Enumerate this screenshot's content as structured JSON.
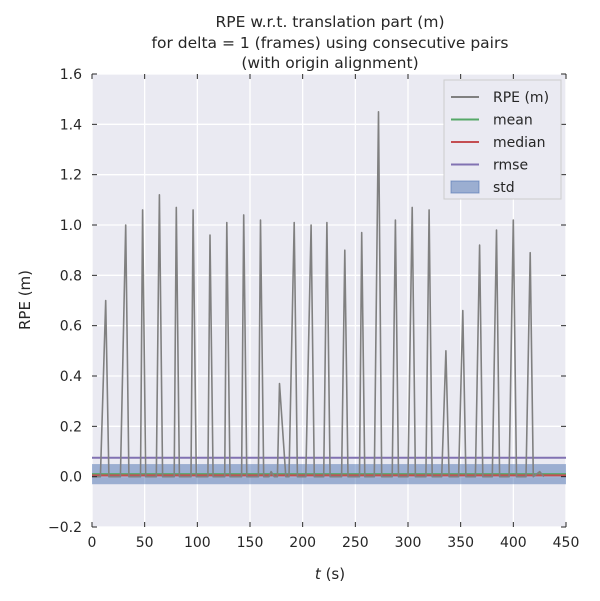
{
  "chart_data": {
    "type": "line",
    "title_lines": [
      "RPE w.r.t. translation part (m)",
      "for delta = 1 (frames) using consecutive pairs",
      "(with origin alignment)"
    ],
    "xlabel_italic": "t",
    "xlabel_rest": " (s)",
    "ylabel": "RPE (m)",
    "xlim": [
      0,
      450
    ],
    "ylim": [
      -0.2,
      1.6
    ],
    "xticks": [
      0,
      50,
      100,
      150,
      200,
      250,
      300,
      350,
      400,
      450
    ],
    "yticks": [
      -0.2,
      0.0,
      0.2,
      0.4,
      0.6,
      0.8,
      1.0,
      1.2,
      1.4,
      1.6
    ],
    "ytick_labels": [
      "−0.2",
      "0.0",
      "0.2",
      "0.4",
      "0.6",
      "0.8",
      "1.0",
      "1.2",
      "1.4",
      "1.6"
    ],
    "grid": true,
    "legend_position": "top-right",
    "series": [
      {
        "name": "RPE (m)",
        "kind": "line",
        "color": "#808080",
        "x": [
          0,
          8,
          13,
          16,
          24,
          27,
          32,
          35,
          43,
          46,
          48,
          51,
          58,
          61,
          64,
          67,
          75,
          78,
          80,
          83,
          91,
          94,
          96,
          99,
          107,
          110,
          112,
          115,
          123,
          126,
          128,
          131,
          139,
          142,
          144,
          147,
          155,
          158,
          160,
          163,
          168,
          170,
          173,
          176,
          178,
          184,
          187,
          192,
          195,
          200,
          203,
          208,
          211,
          217,
          220,
          223,
          226,
          234,
          237,
          240,
          243,
          251,
          254,
          256,
          259,
          265,
          268,
          272,
          275,
          282,
          285,
          288,
          291,
          297,
          300,
          304,
          307,
          314,
          317,
          320,
          323,
          329,
          332,
          336,
          339,
          345,
          348,
          352,
          355,
          361,
          364,
          368,
          371,
          377,
          380,
          384,
          387,
          393,
          396,
          400,
          403,
          409,
          412,
          416,
          419,
          425,
          429
        ],
        "y": [
          0.0,
          0.0,
          0.7,
          0.0,
          0.0,
          0.0,
          1.0,
          0.0,
          0.0,
          0.0,
          1.06,
          0.0,
          0.0,
          0.0,
          1.12,
          0.0,
          0.0,
          0.0,
          1.07,
          0.0,
          0.0,
          0.0,
          1.06,
          0.0,
          0.0,
          0.0,
          0.96,
          0.0,
          0.0,
          0.0,
          1.01,
          0.0,
          0.0,
          0.0,
          1.04,
          0.0,
          0.0,
          0.0,
          1.02,
          0.0,
          0.0,
          0.02,
          0.0,
          0.0,
          0.37,
          0.0,
          0.0,
          1.01,
          0.0,
          0.0,
          0.0,
          1.0,
          0.0,
          0.0,
          0.0,
          1.01,
          0.0,
          0.0,
          0.0,
          0.9,
          0.0,
          0.0,
          0.0,
          0.97,
          0.0,
          0.0,
          0.0,
          1.45,
          0.0,
          0.0,
          0.0,
          1.02,
          0.0,
          0.0,
          0.0,
          1.07,
          0.0,
          0.0,
          0.0,
          1.06,
          0.0,
          0.0,
          0.0,
          0.5,
          0.0,
          0.0,
          0.0,
          0.66,
          0.0,
          0.0,
          0.0,
          0.92,
          0.0,
          0.0,
          0.0,
          0.98,
          0.0,
          0.0,
          0.0,
          1.02,
          0.0,
          0.0,
          0.0,
          0.89,
          0.0,
          0.02,
          0.0
        ]
      },
      {
        "name": "mean",
        "kind": "hline",
        "color": "#55a868",
        "value": 0.01
      },
      {
        "name": "median",
        "kind": "hline",
        "color": "#c44e52",
        "value": 0.005
      },
      {
        "name": "rmse",
        "kind": "hline",
        "color": "#8172b2",
        "value": 0.075
      },
      {
        "name": "std",
        "kind": "band",
        "color": "#4c72b0",
        "range": [
          -0.03,
          0.05
        ]
      }
    ]
  }
}
